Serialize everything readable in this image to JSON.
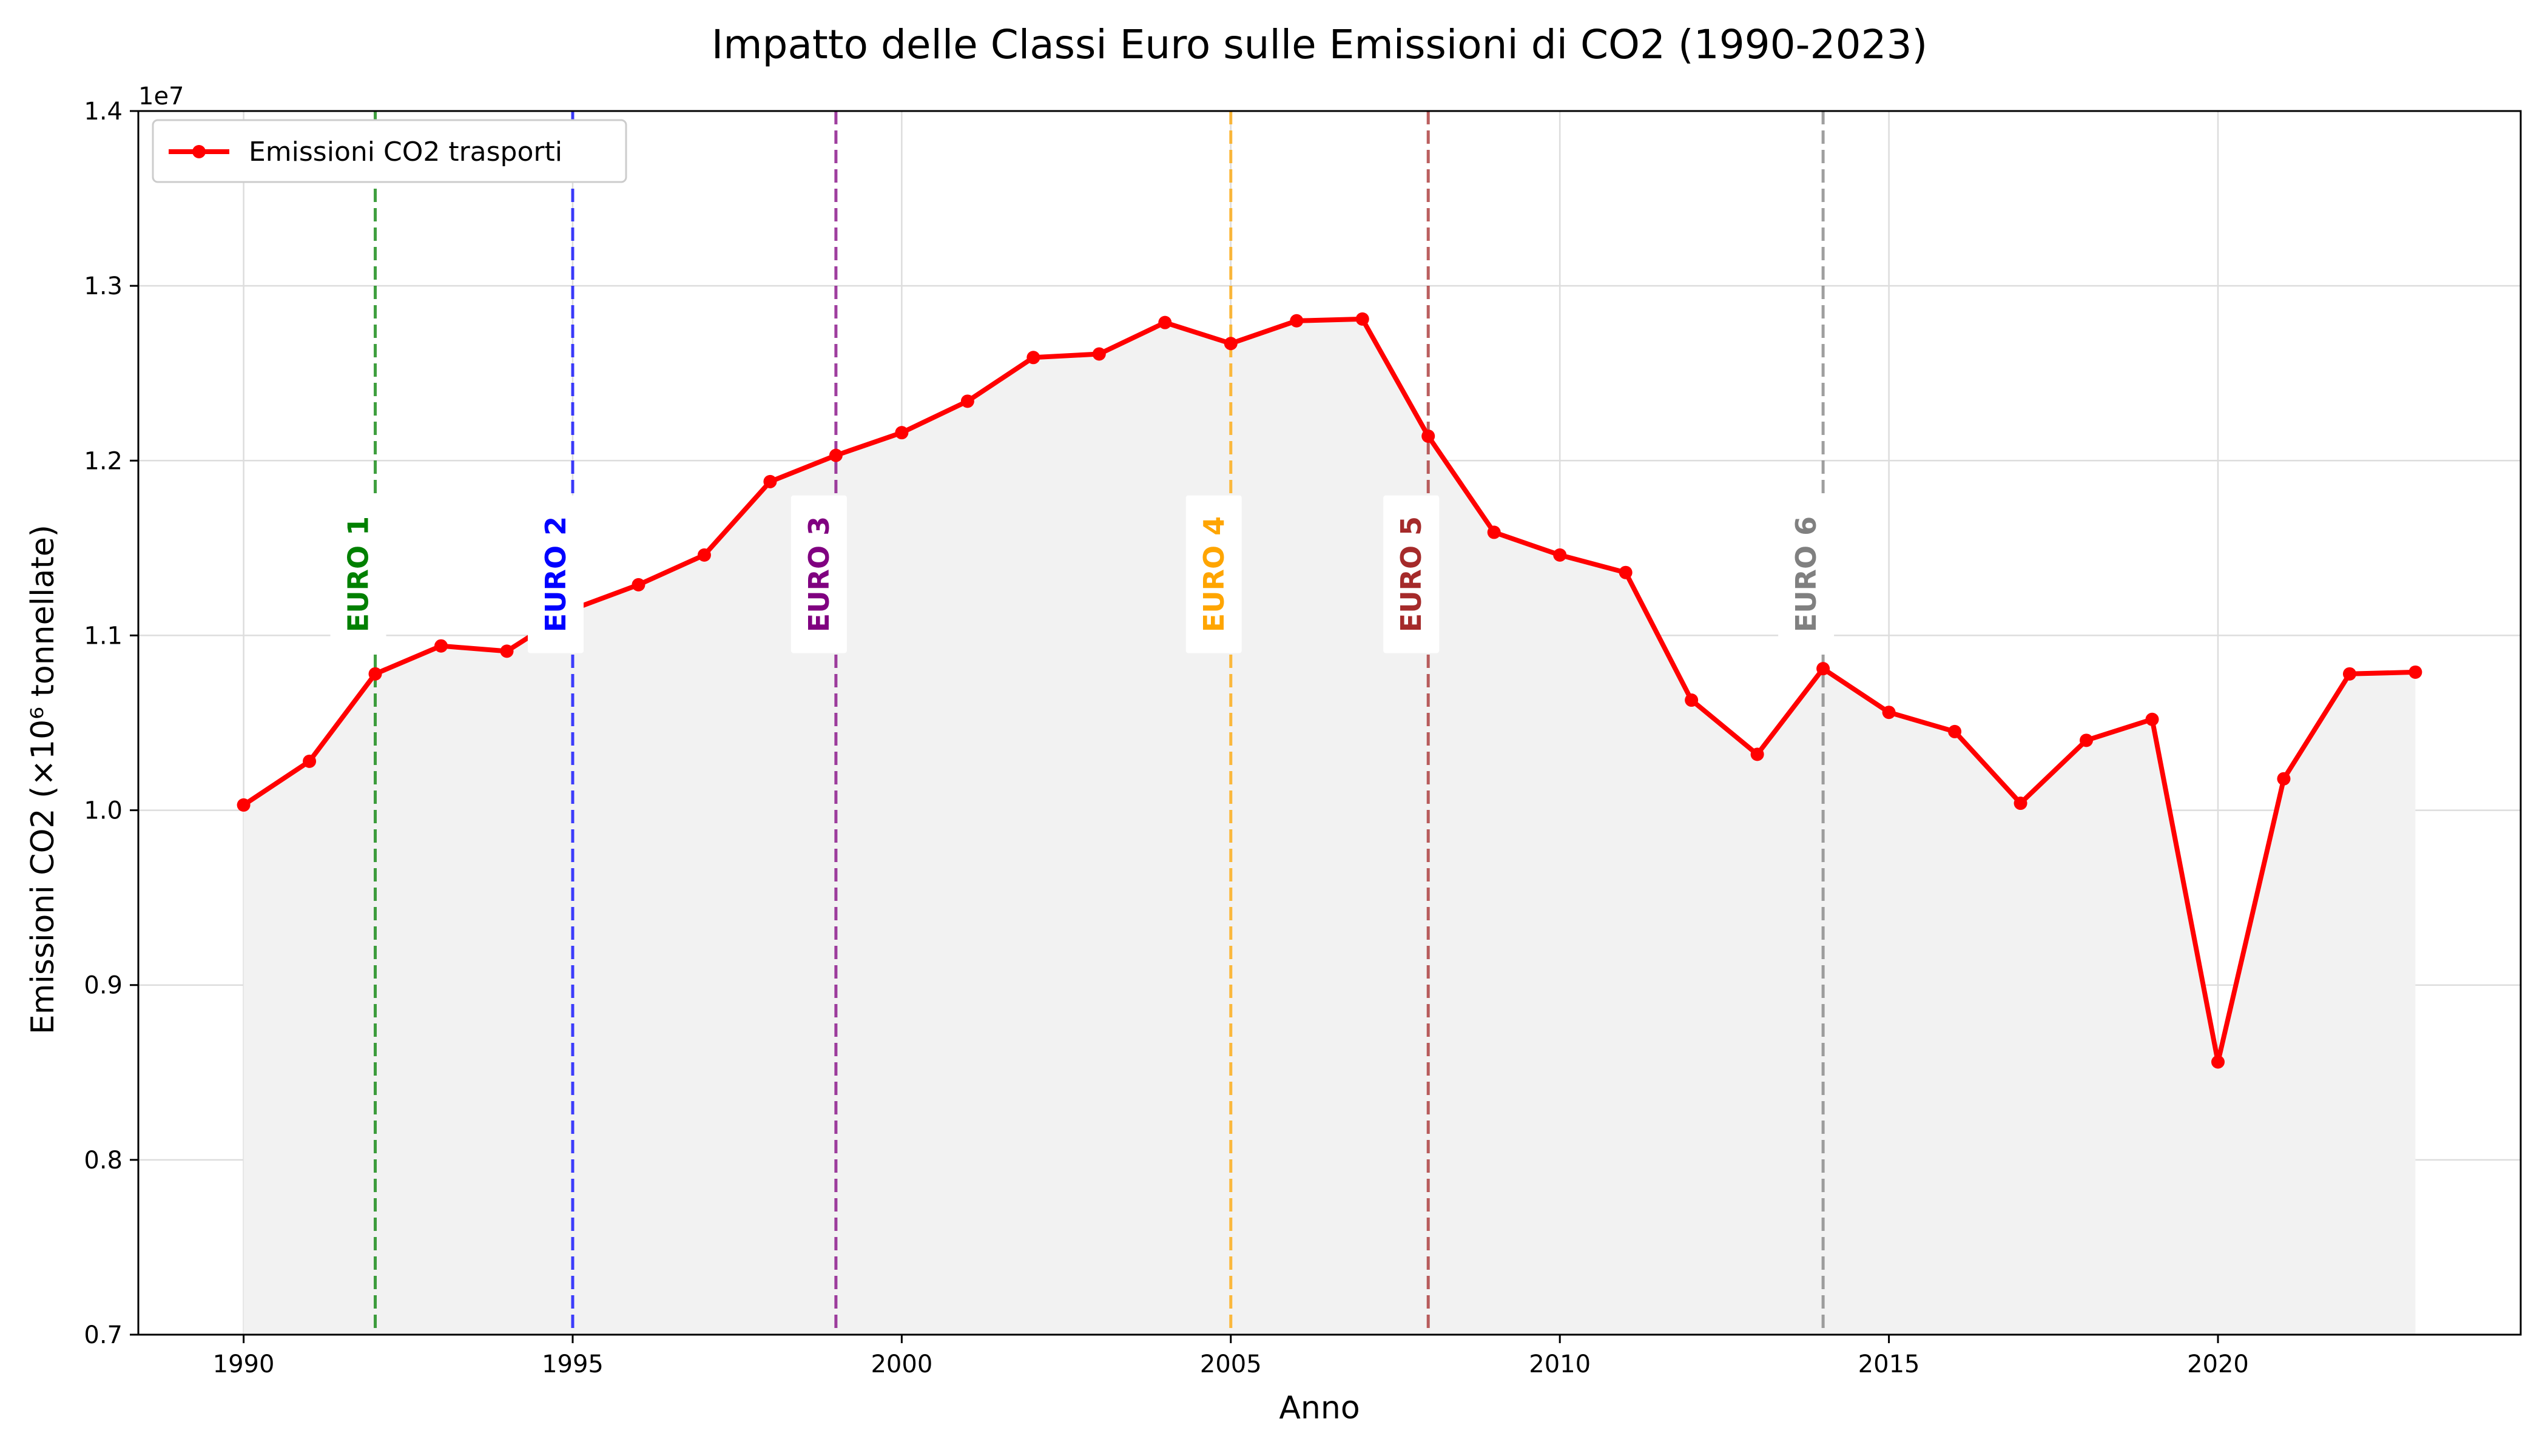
{
  "chart_data": {
    "type": "line",
    "title": "Impatto delle Classi Euro sulle Emissioni di CO2 (1990-2023)",
    "xlabel": "Anno",
    "ylabel": "Emissioni CO2 (×10⁶ tonnellate)",
    "y_offset_label": "1e7",
    "xlim": [
      1988.4,
      2024.6
    ],
    "ylim": [
      7000000,
      14000000
    ],
    "x_ticks": [
      1990,
      1995,
      2000,
      2005,
      2010,
      2015,
      2020
    ],
    "y_ticks": [
      7000000,
      8000000,
      9000000,
      10000000,
      11000000,
      12000000,
      13000000,
      14000000
    ],
    "y_tick_labels": [
      "0.7",
      "0.8",
      "0.9",
      "1.0",
      "1.1",
      "1.2",
      "1.3",
      "1.4"
    ],
    "grid": true,
    "legend_position": "top-left",
    "series": [
      {
        "name": "Emissioni CO2 trasporti",
        "color": "#ff0000",
        "marker": "circle",
        "x": [
          1990,
          1991,
          1992,
          1993,
          1994,
          1995,
          1996,
          1997,
          1998,
          1999,
          2000,
          2001,
          2002,
          2003,
          2004,
          2005,
          2006,
          2007,
          2008,
          2009,
          2010,
          2011,
          2012,
          2013,
          2014,
          2015,
          2016,
          2017,
          2018,
          2019,
          2020,
          2021,
          2022,
          2023
        ],
        "values": [
          10030000,
          10280000,
          10780000,
          10940000,
          10910000,
          11150000,
          11290000,
          11460000,
          11880000,
          12030000,
          12160000,
          12340000,
          12590000,
          12610000,
          12790000,
          12670000,
          12800000,
          12810000,
          12140000,
          11590000,
          11460000,
          11360000,
          10630000,
          10320000,
          10810000,
          10560000,
          10450000,
          10040000,
          10400000,
          10520000,
          8560000,
          10180000,
          10780000,
          10790000
        ]
      }
    ],
    "annotations": [
      {
        "label": "EURO 1",
        "x": 1992,
        "color": "#008000"
      },
      {
        "label": "EURO 2",
        "x": 1995,
        "color": "#0000ff"
      },
      {
        "label": "EURO 3",
        "x": 1999,
        "color": "#800080"
      },
      {
        "label": "EURO 4",
        "x": 2005,
        "color": "#ffa500"
      },
      {
        "label": "EURO 5",
        "x": 2008,
        "color": "#a52a2a"
      },
      {
        "label": "EURO 6",
        "x": 2014,
        "color": "#808080"
      }
    ],
    "annotation_text_y": 11350000,
    "fill_color": "#f2f2f2"
  }
}
